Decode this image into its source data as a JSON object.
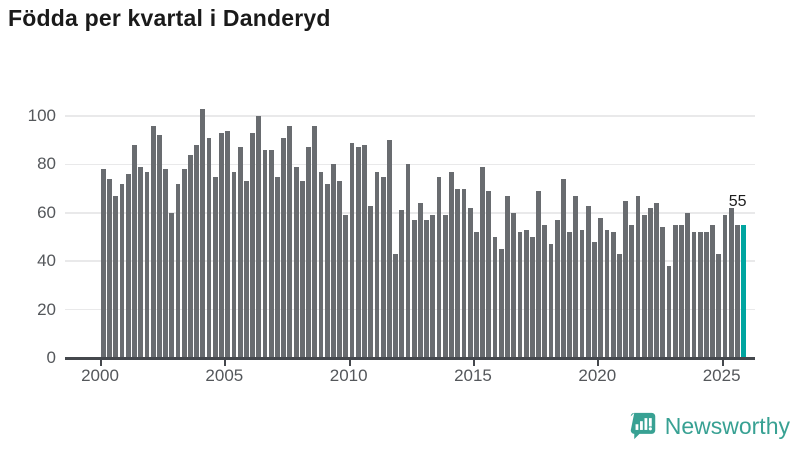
{
  "title": "Födda per kvartal i Danderyd",
  "chart_data": {
    "type": "bar",
    "title": "Födda per kvartal i Danderyd",
    "x_start": "2000 Q1",
    "x_end": "2025 Q4",
    "frequency": "quarterly",
    "categories_note": "104 consecutive quarters from 2000 Q1 to 2025 Q4",
    "values": [
      78,
      74,
      67,
      72,
      76,
      88,
      79,
      77,
      96,
      92,
      78,
      60,
      72,
      78,
      84,
      88,
      103,
      91,
      75,
      93,
      94,
      77,
      87,
      73,
      93,
      100,
      86,
      86,
      75,
      91,
      96,
      79,
      73,
      87,
      96,
      77,
      72,
      80,
      73,
      59,
      89,
      87,
      88,
      63,
      77,
      75,
      90,
      43,
      61,
      80,
      57,
      64,
      57,
      59,
      75,
      59,
      77,
      70,
      70,
      62,
      52,
      79,
      69,
      50,
      45,
      67,
      60,
      52,
      53,
      50,
      69,
      55,
      47,
      57,
      74,
      52,
      67,
      53,
      63,
      48,
      58,
      53,
      52,
      43,
      65,
      55,
      67,
      59,
      62,
      64,
      54,
      38,
      55,
      55,
      60,
      52,
      52,
      52,
      55,
      43,
      59,
      62,
      55,
      55
    ],
    "xticks": [
      "2000",
      "2005",
      "2010",
      "2015",
      "2020",
      "2025"
    ],
    "yticks": [
      0,
      20,
      40,
      60,
      80,
      100
    ],
    "ylim": [
      0,
      110
    ],
    "grid": "horizontal",
    "legend": "none",
    "bar_color": "#696c70",
    "highlight_color": "#00a5a0",
    "highlight_last_bar": true,
    "last_value_label": "55"
  },
  "branding": {
    "logo_text": "Newsworthy",
    "logo_icon": "newsworthy-chart-bubble-icon",
    "brand_color": "#38a193"
  }
}
